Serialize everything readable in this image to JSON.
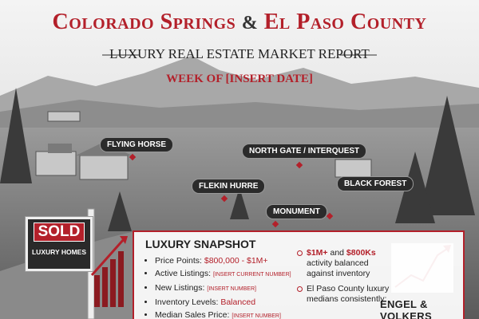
{
  "header": {
    "title_left": "Colorado Springs",
    "title_amp": "&",
    "title_right": "El Paso County",
    "subtitle": "LUXURY REAL ESTATE MARKET REPORT",
    "week": "WEEK OF [INSERT DATE]"
  },
  "map_labels": [
    "FLYING HORSE",
    "NORTH GATE / INTERQUEST",
    "FLEKIN HURRE",
    "BLACK FOREST",
    "MONUMENT"
  ],
  "sign": {
    "main": "SOLD",
    "sub": "LUXURY HOMES"
  },
  "snapshot": {
    "title": "LUXURY SNAPSHOT",
    "items": [
      {
        "label": "Price Points:",
        "value": "$800,000 - $1M+"
      },
      {
        "label": "Active Listings:",
        "value": "[INSERT CURRENT NUMBER]"
      },
      {
        "label": "New Listings:",
        "value": "[INSERT NUMBER]"
      },
      {
        "label": "Inventory Levels:",
        "value": "Balanced"
      },
      {
        "label": "Median Sales Price:",
        "value": "[INSERT NUMBER]"
      }
    ],
    "notes": [
      {
        "parts": [
          "$1M+",
          " and ",
          "$800Ks",
          " activity balanced against inventory"
        ]
      },
      {
        "parts": [
          "El Paso County luxury medians consistently:"
        ]
      }
    ]
  },
  "logo": "ENGEL & VOLKERS"
}
